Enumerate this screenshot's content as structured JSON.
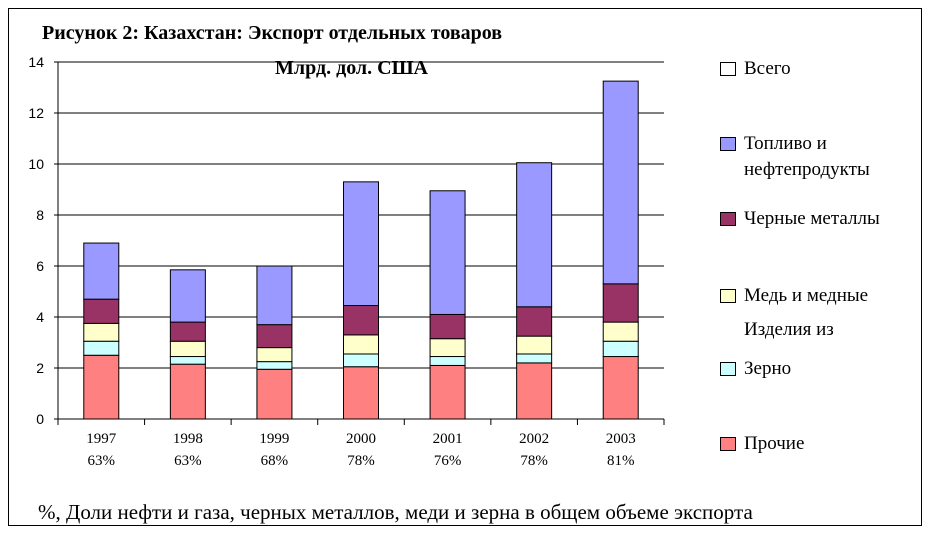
{
  "chart_data": {
    "type": "bar",
    "stacked": true,
    "title": "Рисунок 2: Казахстан: Экспорт отдельных товаров",
    "subtitle": "Млрд. дол. США",
    "categories": [
      "1997",
      "1998",
      "1999",
      "2000",
      "2001",
      "2002",
      "2003"
    ],
    "category_sublabels": [
      "63%",
      "63%",
      "68%",
      "78%",
      "76%",
      "78%",
      "81%"
    ],
    "ylim": [
      0,
      14
    ],
    "yticks": [
      0,
      2,
      4,
      6,
      8,
      10,
      12,
      14
    ],
    "grid": true,
    "legend_position": "right",
    "series": [
      {
        "name": "Прочие",
        "color": "#ff8080",
        "values": [
          2.5,
          2.15,
          1.95,
          2.05,
          2.1,
          2.2,
          2.45
        ]
      },
      {
        "name": "Зерно",
        "color": "#ccffff",
        "values": [
          0.55,
          0.3,
          0.3,
          0.5,
          0.35,
          0.35,
          0.6
        ]
      },
      {
        "name": "Медь и медные",
        "color": "#ffffcc",
        "values": [
          0.7,
          0.6,
          0.55,
          0.75,
          0.7,
          0.7,
          0.75
        ]
      },
      {
        "name": "Черные металлы",
        "color": "#993366",
        "values": [
          0.95,
          0.75,
          0.9,
          1.15,
          0.95,
          1.15,
          1.5
        ]
      },
      {
        "name": "Топливо и нефтепродукты",
        "color": "#9999ff",
        "values": [
          2.2,
          2.05,
          2.3,
          4.85,
          4.85,
          5.65,
          7.95
        ]
      }
    ],
    "totals": [
      6.9,
      5.85,
      6.0,
      9.3,
      8.95,
      10.05,
      13.25
    ]
  },
  "legend": {
    "items": [
      {
        "label_lines": [
          "Всего"
        ],
        "color": "#ffffff"
      },
      {
        "label_lines": [
          "Топливо и",
          "нефтепродукты"
        ],
        "color": "#9999ff"
      },
      {
        "label_lines": [
          "Черные металлы"
        ],
        "color": "#993366"
      },
      {
        "label_lines": [
          "Медь и медные"
        ],
        "color": "#ffffcc"
      },
      {
        "label_lines": [
          "Зерно"
        ],
        "color": "#ccffff"
      },
      {
        "label_lines": [
          "Прочие"
        ],
        "color": "#ff8080"
      }
    ],
    "note": "Изделия из"
  },
  "footnote": "%, Доли нефти и газа, черных металлов, меди и зерна в общем объеме экспорта"
}
